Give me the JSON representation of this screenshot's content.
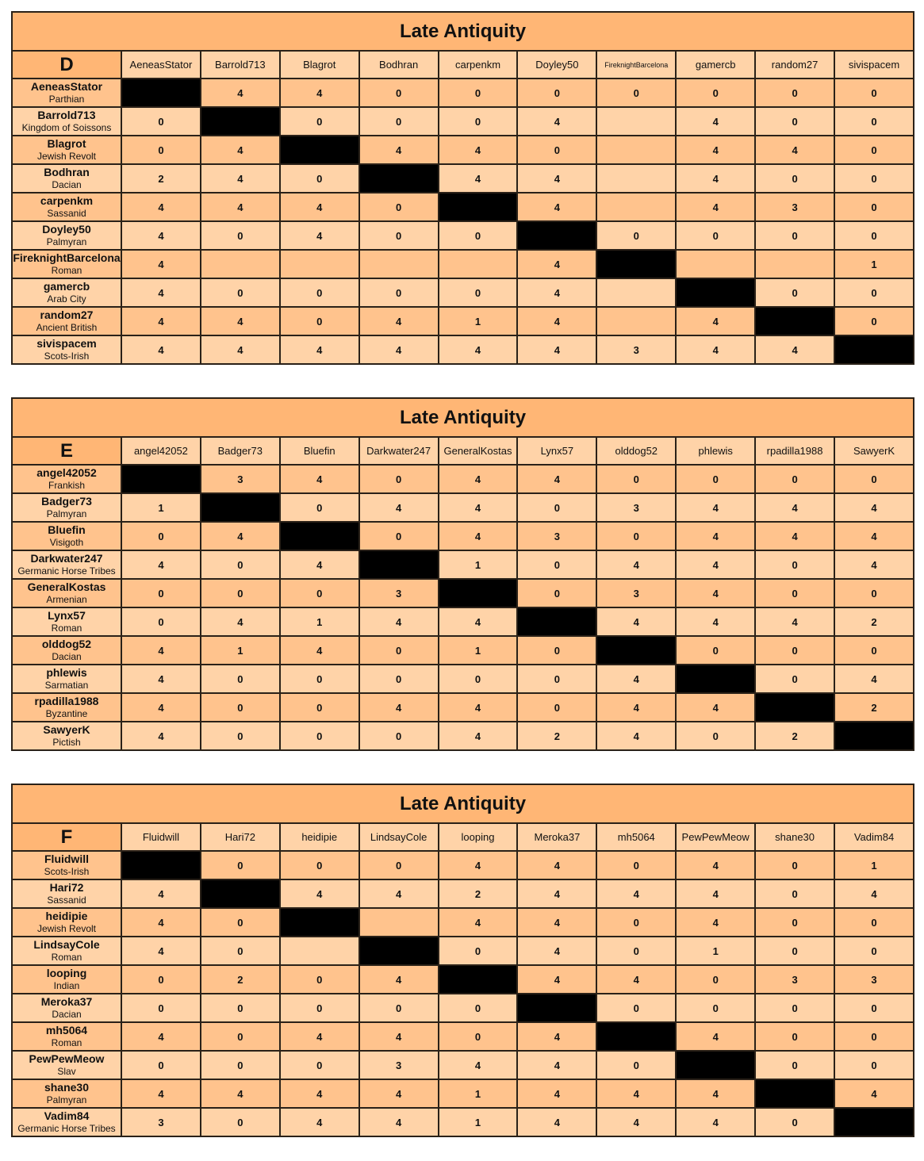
{
  "colors": {
    "title_bg": "#FFB675",
    "row_dark": "#FFC38D",
    "row_light": "#FFD3A8",
    "self_cell": "#000000"
  },
  "tables": [
    {
      "title": "Late Antiquity",
      "group": "D",
      "players": [
        {
          "name": "AeneasStator",
          "faction": "Parthian"
        },
        {
          "name": "Barrold713",
          "faction": "Kingdom of Soissons"
        },
        {
          "name": "Blagrot",
          "faction": "Jewish Revolt"
        },
        {
          "name": "Bodhran",
          "faction": "Dacian"
        },
        {
          "name": "carpenkm",
          "faction": "Sassanid"
        },
        {
          "name": "Doyley50",
          "faction": "Palmyran"
        },
        {
          "name": "FireknightBarcelona",
          "faction": "Roman"
        },
        {
          "name": "gamercb",
          "faction": "Arab City"
        },
        {
          "name": "random27",
          "faction": "Ancient British"
        },
        {
          "name": "sivispacem",
          "faction": "Scots-Irish"
        }
      ],
      "results": [
        [
          null,
          "4",
          "4",
          "0",
          "0",
          "0",
          "0",
          "0",
          "0",
          "0"
        ],
        [
          "0",
          null,
          "0",
          "0",
          "0",
          "4",
          "",
          "4",
          "0",
          "0"
        ],
        [
          "0",
          "4",
          null,
          "4",
          "4",
          "0",
          "",
          "4",
          "4",
          "0"
        ],
        [
          "2",
          "4",
          "0",
          null,
          "4",
          "4",
          "",
          "4",
          "0",
          "0"
        ],
        [
          "4",
          "4",
          "4",
          "0",
          null,
          "4",
          "",
          "4",
          "3",
          "0"
        ],
        [
          "4",
          "0",
          "4",
          "0",
          "0",
          null,
          "0",
          "0",
          "0",
          "0"
        ],
        [
          "4",
          "",
          "",
          "",
          "",
          "4",
          null,
          "",
          "",
          "1"
        ],
        [
          "4",
          "0",
          "0",
          "0",
          "0",
          "4",
          "",
          null,
          "0",
          "0"
        ],
        [
          "4",
          "4",
          "0",
          "4",
          "1",
          "4",
          "",
          "4",
          null,
          "0"
        ],
        [
          "4",
          "4",
          "4",
          "4",
          "4",
          "4",
          "3",
          "4",
          "4",
          null
        ]
      ]
    },
    {
      "title": "Late Antiquity",
      "group": "E",
      "players": [
        {
          "name": "angel42052",
          "faction": "Frankish"
        },
        {
          "name": "Badger73",
          "faction": "Palmyran"
        },
        {
          "name": "Bluefin",
          "faction": "Visigoth"
        },
        {
          "name": "Darkwater247",
          "faction": "Germanic Horse Tribes"
        },
        {
          "name": "GeneralKostas",
          "faction": "Armenian"
        },
        {
          "name": "Lynx57",
          "faction": "Roman"
        },
        {
          "name": "olddog52",
          "faction": "Dacian"
        },
        {
          "name": "phlewis",
          "faction": "Sarmatian"
        },
        {
          "name": "rpadilla1988",
          "faction": "Byzantine"
        },
        {
          "name": "SawyerK",
          "faction": "Pictish"
        }
      ],
      "results": [
        [
          null,
          "3",
          "4",
          "0",
          "4",
          "4",
          "0",
          "0",
          "0",
          "0"
        ],
        [
          "1",
          null,
          "0",
          "4",
          "4",
          "0",
          "3",
          "4",
          "4",
          "4"
        ],
        [
          "0",
          "4",
          null,
          "0",
          "4",
          "3",
          "0",
          "4",
          "4",
          "4"
        ],
        [
          "4",
          "0",
          "4",
          null,
          "1",
          "0",
          "4",
          "4",
          "0",
          "4"
        ],
        [
          "0",
          "0",
          "0",
          "3",
          null,
          "0",
          "3",
          "4",
          "0",
          "0"
        ],
        [
          "0",
          "4",
          "1",
          "4",
          "4",
          null,
          "4",
          "4",
          "4",
          "2"
        ],
        [
          "4",
          "1",
          "4",
          "0",
          "1",
          "0",
          null,
          "0",
          "0",
          "0"
        ],
        [
          "4",
          "0",
          "0",
          "0",
          "0",
          "0",
          "4",
          null,
          "0",
          "4"
        ],
        [
          "4",
          "0",
          "0",
          "4",
          "4",
          "0",
          "4",
          "4",
          null,
          "2"
        ],
        [
          "4",
          "0",
          "0",
          "0",
          "4",
          "2",
          "4",
          "0",
          "2",
          null
        ]
      ]
    },
    {
      "title": "Late Antiquity",
      "group": "F",
      "players": [
        {
          "name": "Fluidwill",
          "faction": "Scots-Irish"
        },
        {
          "name": "Hari72",
          "faction": "Sassanid"
        },
        {
          "name": "heidipie",
          "faction": "Jewish Revolt"
        },
        {
          "name": "LindsayCole",
          "faction": "Roman"
        },
        {
          "name": "looping",
          "faction": "Indian"
        },
        {
          "name": "Meroka37",
          "faction": "Dacian"
        },
        {
          "name": "mh5064",
          "faction": "Roman"
        },
        {
          "name": "PewPewMeow",
          "faction": "Slav"
        },
        {
          "name": "shane30",
          "faction": "Palmyran"
        },
        {
          "name": "Vadim84",
          "faction": "Germanic Horse Tribes"
        }
      ],
      "results": [
        [
          null,
          "0",
          "0",
          "0",
          "4",
          "4",
          "0",
          "4",
          "0",
          "1"
        ],
        [
          "4",
          null,
          "4",
          "4",
          "2",
          "4",
          "4",
          "4",
          "0",
          "4"
        ],
        [
          "4",
          "0",
          null,
          "",
          "4",
          "4",
          "0",
          "4",
          "0",
          "0"
        ],
        [
          "4",
          "0",
          "",
          null,
          "0",
          "4",
          "0",
          "1",
          "0",
          "0"
        ],
        [
          "0",
          "2",
          "0",
          "4",
          null,
          "4",
          "4",
          "0",
          "3",
          "3"
        ],
        [
          "0",
          "0",
          "0",
          "0",
          "0",
          null,
          "0",
          "0",
          "0",
          "0"
        ],
        [
          "4",
          "0",
          "4",
          "4",
          "0",
          "4",
          null,
          "4",
          "0",
          "0"
        ],
        [
          "0",
          "0",
          "0",
          "3",
          "4",
          "4",
          "0",
          null,
          "0",
          "0"
        ],
        [
          "4",
          "4",
          "4",
          "4",
          "1",
          "4",
          "4",
          "4",
          null,
          "4"
        ],
        [
          "3",
          "0",
          "4",
          "4",
          "1",
          "4",
          "4",
          "4",
          "0",
          null
        ]
      ]
    }
  ]
}
